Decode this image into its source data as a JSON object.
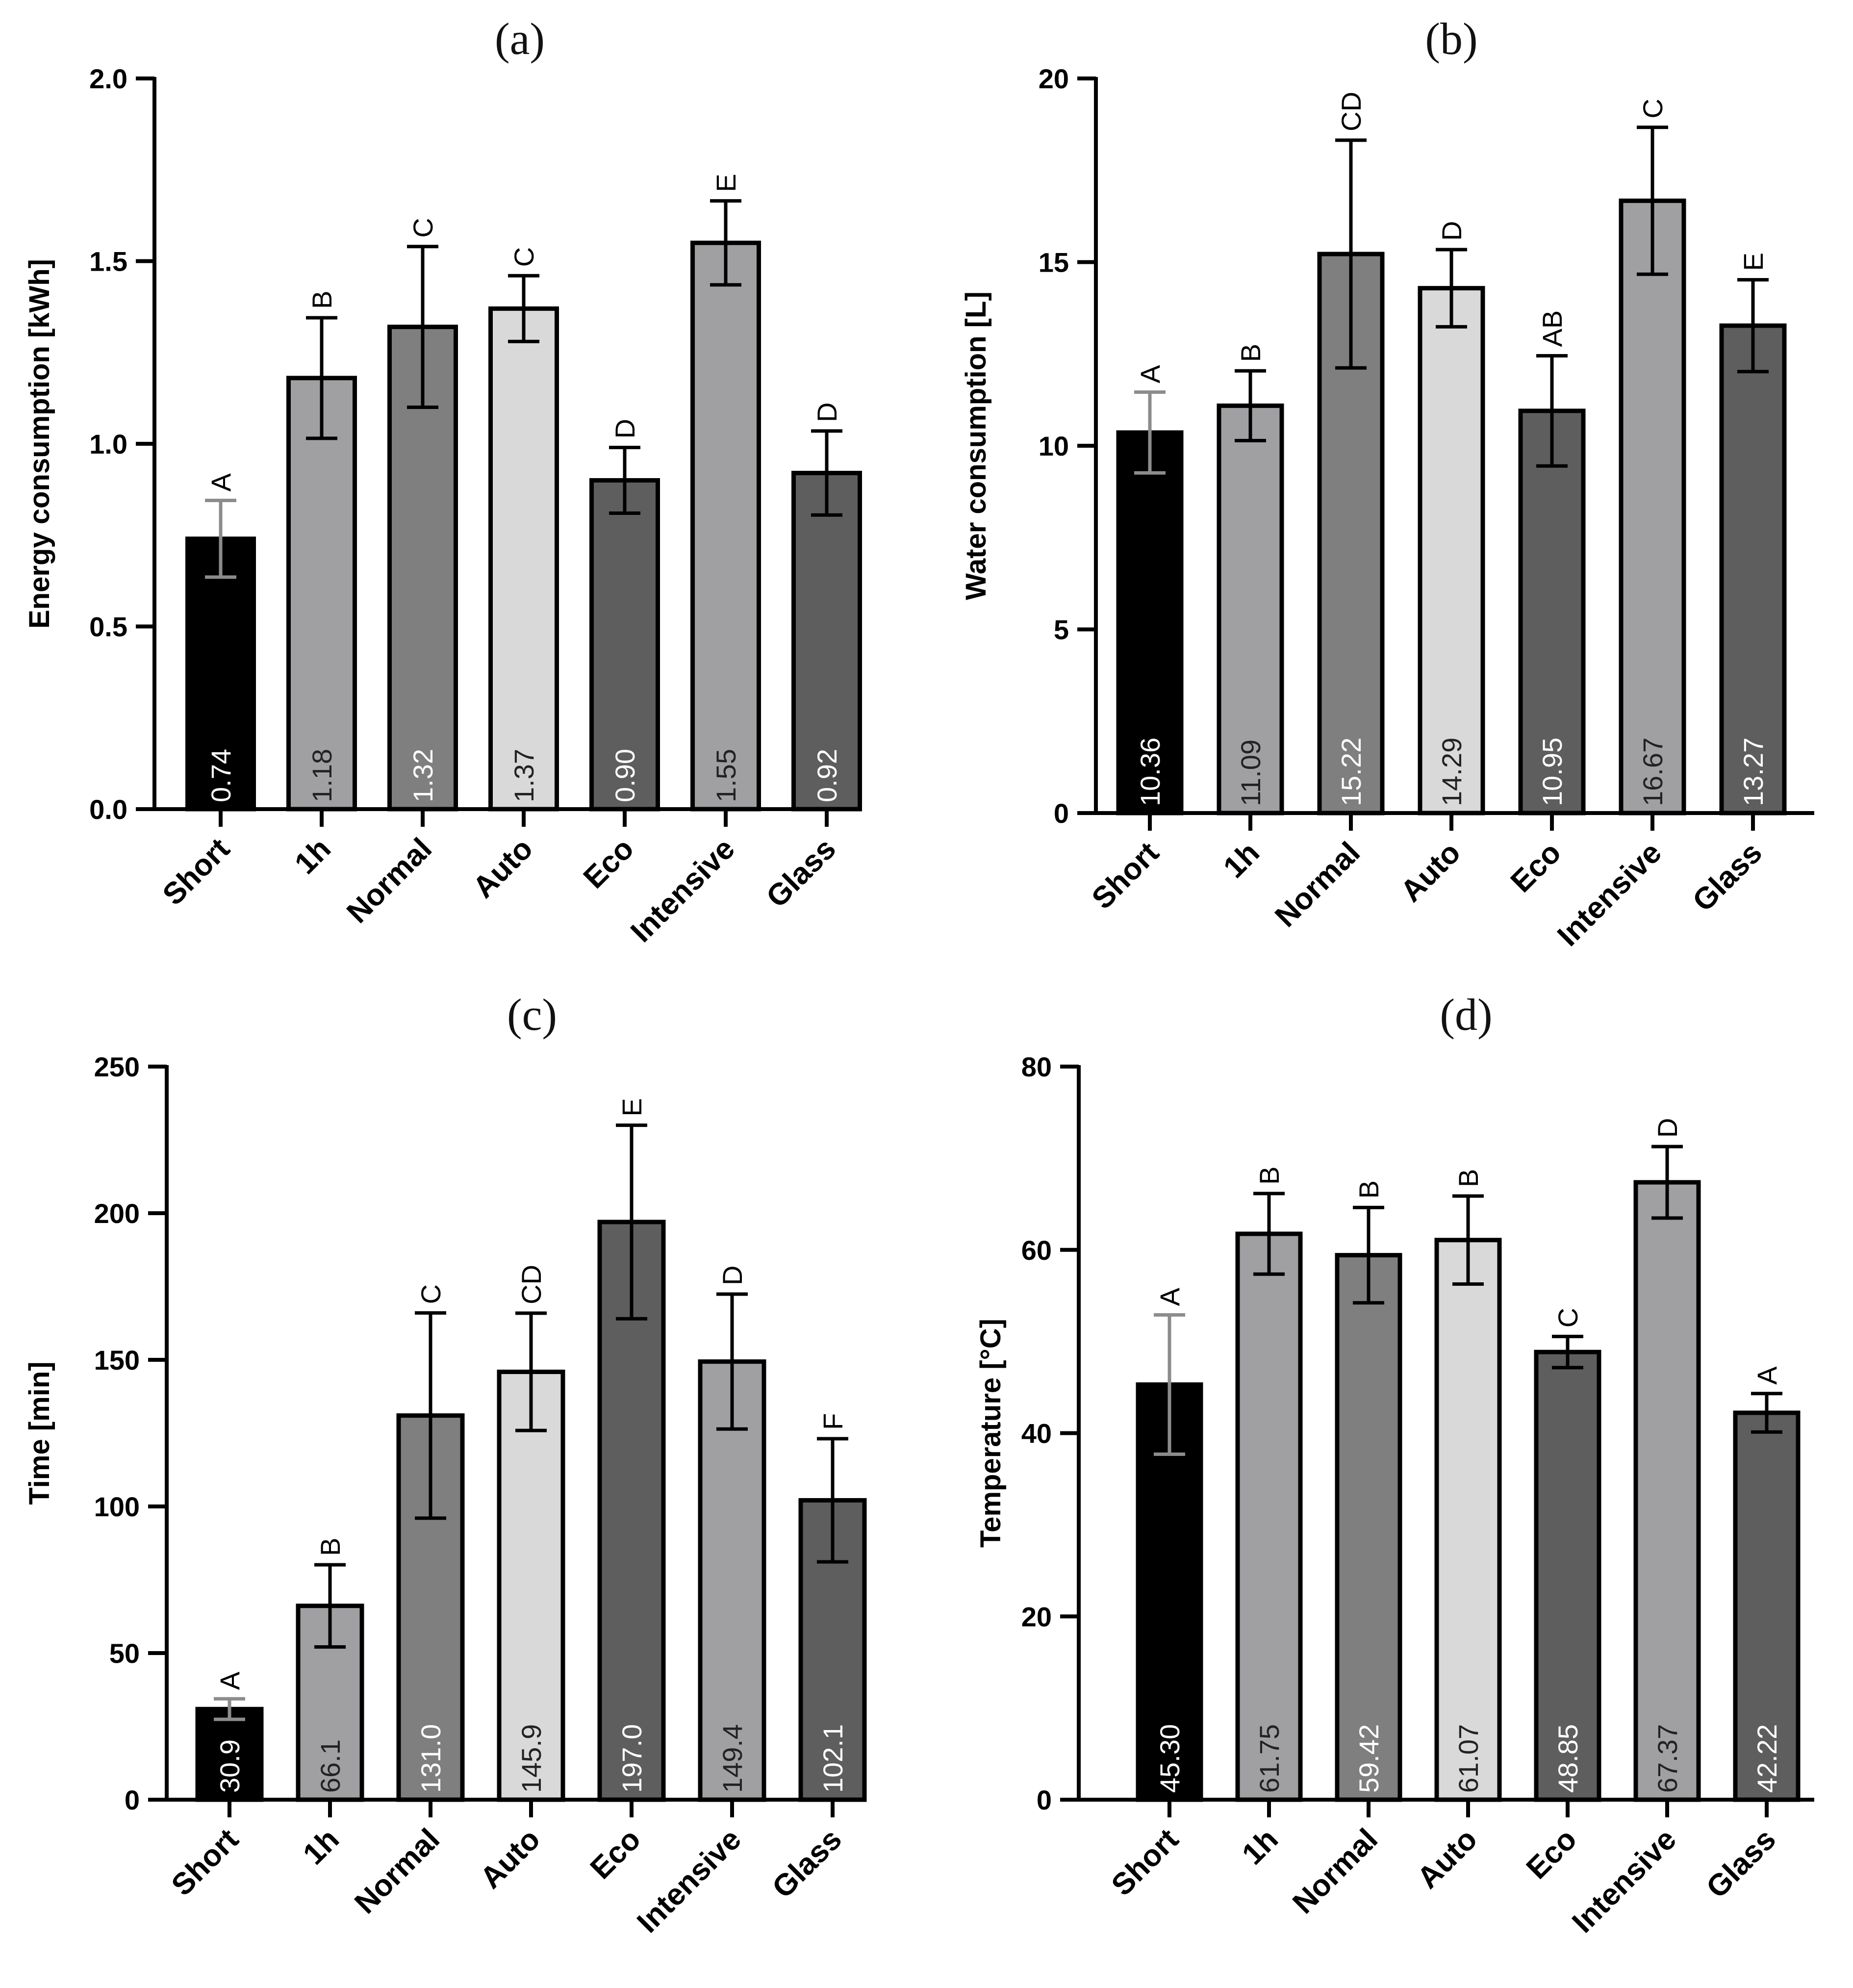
{
  "colors": {
    "Short": "#000000",
    "1h": "#a0a0a3",
    "Normal": "#7f7f7f",
    "Auto": "#d9d9d9",
    "Eco": "#5e5e5e",
    "Intensive": "#a0a0a3",
    "Glass": "#5e5e5e",
    "error_bar": "#000000",
    "error_bar_short": "#8c8c8c"
  },
  "chart_data": [
    {
      "type": "bar",
      "title": "(a)",
      "ylabel": "Energy consumption [kWh]",
      "ylim": [
        0,
        2.0
      ],
      "yticks": [
        0.0,
        0.5,
        1.0,
        1.5,
        2.0
      ],
      "ytick_labels": [
        "0.0",
        "0.5",
        "1.0",
        "1.5",
        "2.0"
      ],
      "categories": [
        "Short",
        "1h",
        "Normal",
        "Auto",
        "Eco",
        "Intensive",
        "Glass"
      ],
      "values": [
        0.74,
        1.18,
        1.32,
        1.37,
        0.9,
        1.55,
        0.92
      ],
      "value_labels": [
        "0.74",
        "1.18",
        "1.32",
        "1.37",
        "0.90",
        "1.55",
        "0.92"
      ],
      "errors": [
        0.105,
        0.165,
        0.22,
        0.09,
        0.09,
        0.115,
        0.115
      ],
      "letters": [
        "A",
        "B",
        "C",
        "C",
        "D",
        "E",
        "D"
      ]
    },
    {
      "type": "bar",
      "title": "(b)",
      "ylabel": "Water consumption [L]",
      "ylim": [
        0,
        20
      ],
      "yticks": [
        0,
        5,
        10,
        15,
        20
      ],
      "ytick_labels": [
        "0",
        "5",
        "10",
        "15",
        "20"
      ],
      "categories": [
        "Short",
        "1h",
        "Normal",
        "Auto",
        "Eco",
        "Intensive",
        "Glass"
      ],
      "values": [
        10.36,
        11.09,
        15.22,
        14.29,
        10.95,
        16.67,
        13.27
      ],
      "value_labels": [
        "10.36",
        "11.09",
        "15.22",
        "14.29",
        "10.95",
        "16.67",
        "13.27"
      ],
      "errors": [
        1.1,
        0.95,
        3.1,
        1.05,
        1.5,
        2.0,
        1.25
      ],
      "letters": [
        "A",
        "B",
        "CD",
        "D",
        "AB",
        "C",
        "E"
      ]
    },
    {
      "type": "bar",
      "title": "(c)",
      "ylabel": "Time [min]",
      "ylim": [
        0,
        250
      ],
      "yticks": [
        0,
        50,
        100,
        150,
        200,
        250
      ],
      "ytick_labels": [
        "0",
        "50",
        "100",
        "150",
        "200",
        "250"
      ],
      "categories": [
        "Short",
        "1h",
        "Normal",
        "Auto",
        "Eco",
        "Intensive",
        "Glass"
      ],
      "values": [
        30.9,
        66.1,
        131.0,
        145.9,
        197.0,
        149.4,
        102.1
      ],
      "value_labels": [
        "30.9",
        "66.1",
        "131.0",
        "145.9",
        "197.0",
        "149.4",
        "102.1"
      ],
      "errors": [
        3.5,
        14,
        35,
        20,
        33,
        23,
        21
      ],
      "letters": [
        "A",
        "B",
        "C",
        "CD",
        "E",
        "D",
        "F"
      ]
    },
    {
      "type": "bar",
      "title": "(d)",
      "ylabel": "Temperature [°C]",
      "ylim": [
        0,
        80
      ],
      "yticks": [
        0,
        20,
        40,
        60,
        80
      ],
      "ytick_labels": [
        "0",
        "20",
        "40",
        "60",
        "80"
      ],
      "categories": [
        "Short",
        "1h",
        "Normal",
        "Auto",
        "Eco",
        "Intensive",
        "Glass"
      ],
      "values": [
        45.3,
        61.75,
        59.42,
        61.07,
        48.85,
        67.37,
        42.22
      ],
      "value_labels": [
        "45.30",
        "61.75",
        "59.42",
        "61.07",
        "48.85",
        "67.37",
        "42.22"
      ],
      "errors": [
        7.6,
        4.4,
        5.2,
        4.8,
        1.7,
        3.9,
        2.1
      ],
      "letters": [
        "A",
        "B",
        "B",
        "B",
        "C",
        "D",
        "A"
      ]
    }
  ]
}
